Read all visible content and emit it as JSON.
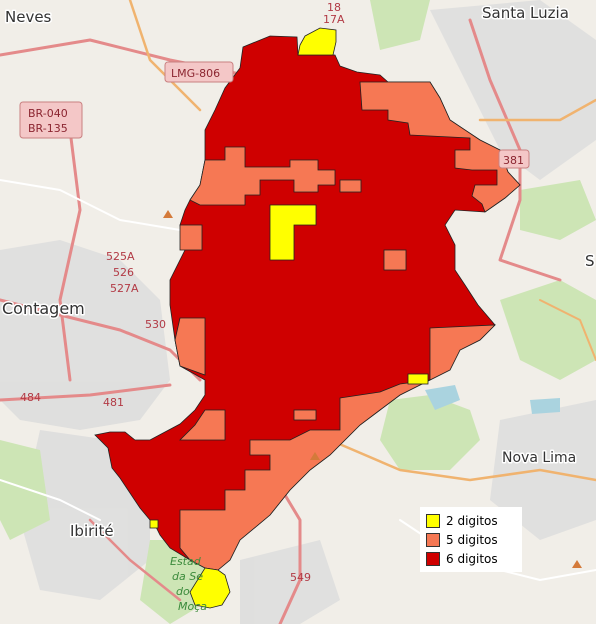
{
  "colors": {
    "d2": "#ffff00",
    "d5": "#f67854",
    "d6": "#cf0000"
  },
  "places": {
    "neves": "Neves",
    "santa_luzia": "Santa Luzia",
    "contagem": "Contagem",
    "ibirite": "Ibirité",
    "nova_lima": "Nova Lima",
    "s_partial": "S"
  },
  "roads": {
    "lmg806": "LMG-806",
    "br040": "BR-040",
    "br135": "BR-135",
    "r381": "381",
    "r18": "18",
    "r17a": "17A",
    "r525a": "525A",
    "r526": "526",
    "r527a": "527A",
    "r530": "530",
    "r484": "484",
    "r481": "481",
    "r549": "549"
  },
  "park": {
    "line1": "Estad",
    "line2": "da Se",
    "line3": "do",
    "line4": "Moça"
  },
  "legend": {
    "items": [
      {
        "label": "2 digitos",
        "color": "#ffff00"
      },
      {
        "label": "5 digitos",
        "color": "#f67854"
      },
      {
        "label": "6 digitos",
        "color": "#cf0000"
      }
    ]
  }
}
